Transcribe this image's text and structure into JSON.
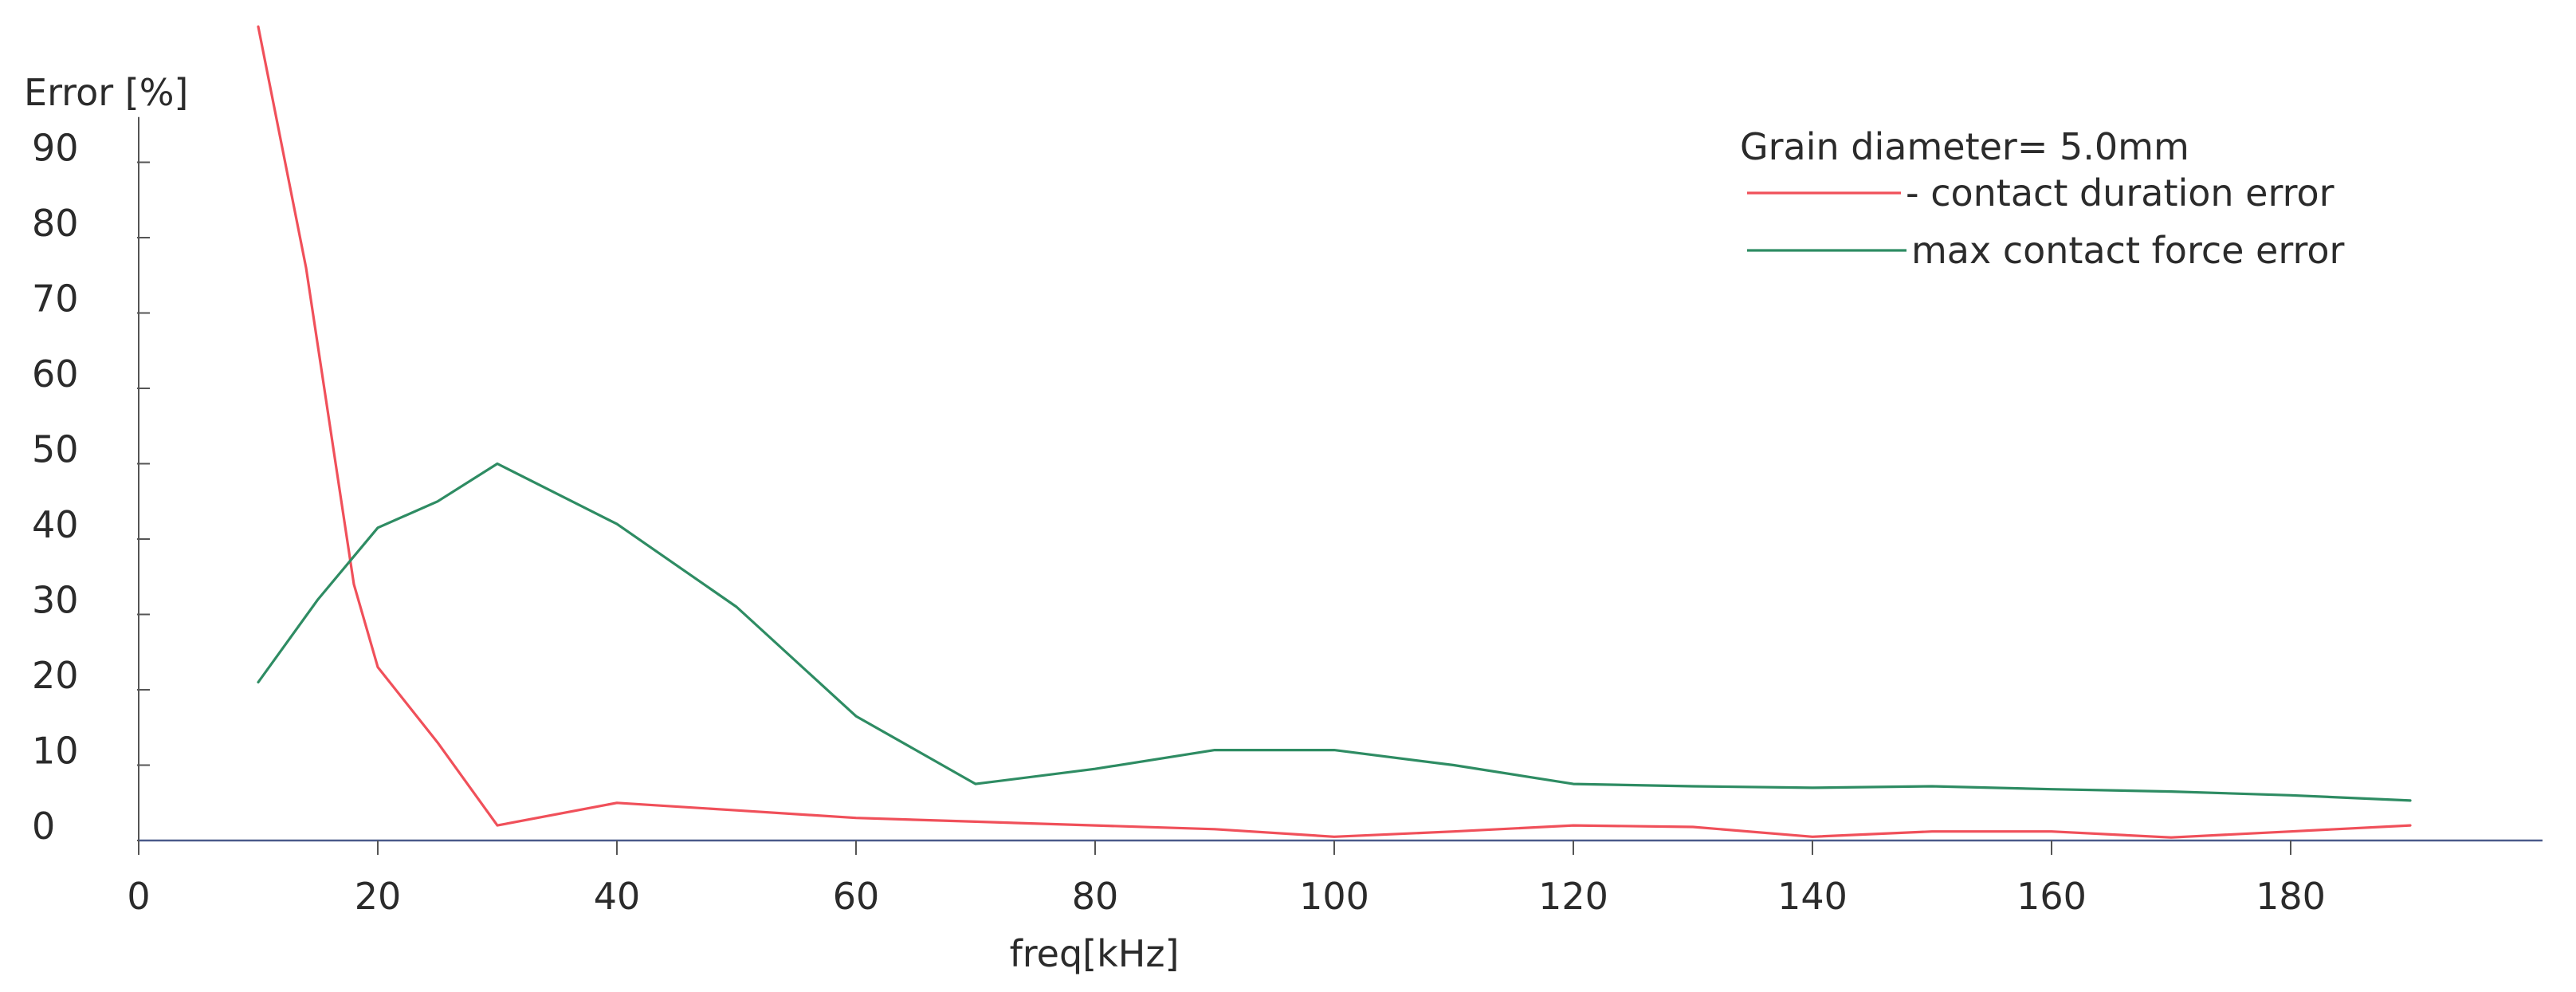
{
  "chart_data": {
    "type": "line",
    "title": "",
    "xlabel": "freq[kHz]",
    "ylabel": "Error [%]",
    "xlim": [
      0,
      200
    ],
    "ylim": [
      0,
      100
    ],
    "x_ticks": [
      "0",
      "20",
      "40",
      "60",
      "80",
      "100",
      "120",
      "140",
      "160",
      "180"
    ],
    "y_ticks": [
      "0",
      "10",
      "20",
      "30",
      "40",
      "50",
      "60",
      "70",
      "80",
      "90"
    ],
    "grid": false,
    "legend": {
      "placement": "top-right",
      "title": "Grain diameter= 5.0mm",
      "entries": [
        "- contact duration error",
        "max contact force error"
      ]
    },
    "series": [
      {
        "name": "- contact duration error",
        "color": "#f0505a",
        "x": [
          10,
          14,
          18,
          20,
          25,
          30,
          40,
          50,
          60,
          70,
          80,
          90,
          100,
          110,
          120,
          130,
          140,
          150,
          160,
          170,
          180,
          190
        ],
        "y": [
          108,
          76,
          34,
          23,
          13,
          2,
          5,
          4,
          3,
          2.5,
          2,
          1.5,
          0.5,
          1.2,
          2,
          1.8,
          0.5,
          1.2,
          1.2,
          0.4,
          1.2,
          2
        ]
      },
      {
        "name": "max contact force error",
        "color": "#2e8c63",
        "x": [
          10,
          15,
          20,
          25,
          30,
          40,
          50,
          60,
          70,
          80,
          90,
          100,
          110,
          120,
          130,
          140,
          150,
          160,
          170,
          180,
          190
        ],
        "y": [
          21,
          32,
          41.5,
          45,
          50,
          42,
          31,
          16.5,
          7.5,
          9.5,
          12,
          12,
          10,
          7.5,
          7.2,
          7,
          7.2,
          6.8,
          6.5,
          6,
          5.3
        ]
      }
    ]
  }
}
